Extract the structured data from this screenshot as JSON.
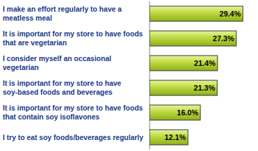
{
  "chart_data": {
    "type": "bar",
    "orientation": "horizontal",
    "categories": [
      "I make an effort regularly to have a meatless meal",
      "It is important for my store to have foods that are vegetarian",
      "I consider myself an occasional vegetarian",
      "It is important for my store to have soy-based foods and beverages",
      "It is important for my store to have foods that contain soy isoflavones",
      "I try to eat soy foods/beverages regularly"
    ],
    "values": [
      29.4,
      27.3,
      21.4,
      21.3,
      16.0,
      12.1
    ],
    "value_labels": [
      "29.4%",
      "27.3%",
      "21.4%",
      "21.3%",
      "16.0%",
      "12.1%"
    ],
    "color": "#b8d63a",
    "xlim": [
      0,
      32
    ],
    "data_labels": true,
    "tick_labels": false,
    "grid": false
  }
}
